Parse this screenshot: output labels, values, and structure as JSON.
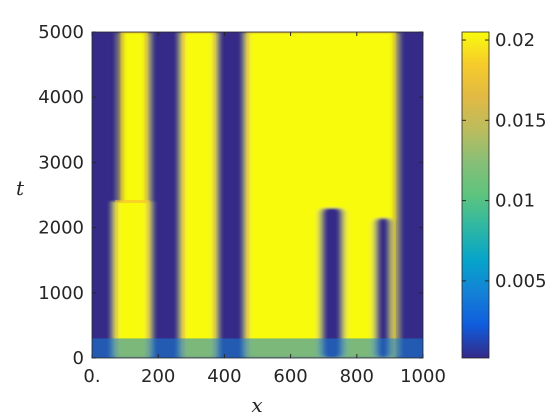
{
  "chart_data": {
    "type": "heatmap",
    "xlabel": "x",
    "ylabel": "t",
    "xlim": [
      0,
      1000
    ],
    "ylim": [
      0,
      5000
    ],
    "x_ticks": [
      {
        "value": 0,
        "label": "0."
      },
      {
        "value": 200,
        "label": "200"
      },
      {
        "value": 400,
        "label": "400"
      },
      {
        "value": 600,
        "label": "600"
      },
      {
        "value": 800,
        "label": "800"
      },
      {
        "value": 1000,
        "label": "1000"
      }
    ],
    "y_ticks": [
      {
        "value": 0,
        "label": "0"
      },
      {
        "value": 1000,
        "label": "1000"
      },
      {
        "value": 2000,
        "label": "2000"
      },
      {
        "value": 3000,
        "label": "3000"
      },
      {
        "value": 4000,
        "label": "4000"
      },
      {
        "value": 5000,
        "label": "5000"
      }
    ],
    "colorbar": {
      "range": [
        0.0002,
        0.0205
      ],
      "ticks": [
        {
          "value": 0.005,
          "label": "0.005"
        },
        {
          "value": 0.01,
          "label": "0.01"
        },
        {
          "value": 0.015,
          "label": "0.015"
        },
        {
          "value": 0.02,
          "label": "0.02"
        }
      ],
      "colormap": "parula",
      "low_color": "#352a87",
      "high_color": "#f9fb0e"
    },
    "high_regions": [
      {
        "x_start": 68,
        "x_end": 175,
        "t_start": 0,
        "t_end": 2400,
        "note": "band, widens below t~2400"
      },
      {
        "x_start": 85,
        "x_end": 170,
        "t_start": 2400,
        "t_end": 5000
      },
      {
        "x_start": 270,
        "x_end": 375,
        "t_start": 0,
        "t_end": 5000
      },
      {
        "x_start": 465,
        "x_end": 920,
        "t_start": 0,
        "t_end": 5000,
        "note": "wide merged domain"
      }
    ],
    "low_regions": [
      {
        "x_start": 0,
        "x_end": 68,
        "t_start": 0,
        "t_end": 5000
      },
      {
        "x_start": 175,
        "x_end": 270,
        "t_start": 0,
        "t_end": 5000
      },
      {
        "x_start": 375,
        "x_end": 465,
        "t_start": 0,
        "t_end": 5000
      },
      {
        "x_start": 690,
        "x_end": 760,
        "t_start": 0,
        "t_end": 2300
      },
      {
        "x_start": 855,
        "x_end": 905,
        "t_start": 0,
        "t_end": 2150
      },
      {
        "x_start": 930,
        "x_end": 1000,
        "t_start": 0,
        "t_end": 5000
      }
    ]
  }
}
